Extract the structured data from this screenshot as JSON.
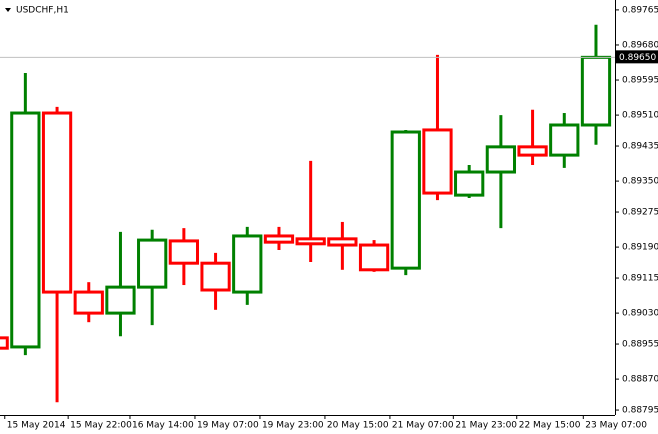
{
  "chart_data": {
    "type": "candlestick",
    "title": "USDCHF,H1",
    "up_color": "#008000",
    "down_color": "#ff0000",
    "price_line_color": "#c0c0c0",
    "ylim": [
      0.88783,
      0.89789
    ],
    "yticks": [
      0.89765,
      {
        "value": 0.8968,
        "label": "0.89680"
      },
      0.89595,
      {
        "value": 0.8951,
        "label": "0.89510"
      },
      0.89435,
      {
        "value": 0.8935,
        "label": "0.89350"
      },
      0.89275,
      {
        "value": 0.8919,
        "label": "0.89190"
      },
      0.89115,
      {
        "value": 0.8903,
        "label": "0.89030"
      },
      0.88955,
      {
        "value": 0.8887,
        "label": "0.88870"
      },
      0.88795
    ],
    "xlim": [
      0.2,
      19.6
    ],
    "xticks": [
      {
        "value": 0.35,
        "label": "15 May 2014"
      },
      {
        "value": 2.35,
        "label": "15 May 22:00"
      },
      {
        "value": 4.3,
        "label": "16 May 14:00"
      },
      {
        "value": 6.35,
        "label": "19 May 07:00"
      },
      {
        "value": 8.4,
        "label": "19 May 23:00"
      },
      {
        "value": 10.45,
        "label": "20 May 15:00"
      },
      {
        "value": 12.5,
        "label": "21 May 07:00"
      },
      {
        "value": 14.5,
        "label": "21 May 23:00"
      },
      {
        "value": 16.5,
        "label": "22 May 15:00"
      },
      {
        "value": 18.6,
        "label": "23 May 07:00"
      }
    ],
    "current_price": {
      "value": 0.8965,
      "label": "0.89650"
    },
    "x": [
      0,
      1,
      2,
      3,
      4,
      5,
      6,
      7,
      8,
      9,
      10,
      11,
      12,
      13,
      14,
      15,
      16,
      17,
      18,
      19
    ],
    "open": [
      0.8897,
      0.88948,
      0.89515,
      0.89081,
      0.8903,
      0.89093,
      0.89205,
      0.89151,
      0.89081,
      0.89217,
      0.8921,
      0.8921,
      0.89195,
      0.89139,
      0.89474,
      0.89316,
      0.89372,
      0.89433,
      0.89413,
      0.89486
    ],
    "high": [
      0.8897,
      0.89612,
      0.8953,
      0.89105,
      0.89227,
      0.89232,
      0.89236,
      0.89176,
      0.89239,
      0.89239,
      0.89399,
      0.89251,
      0.89207,
      0.89474,
      0.89656,
      0.89389,
      0.8951,
      0.89523,
      0.89515,
      0.89729
    ],
    "low": [
      0.88916,
      0.88928,
      0.88814,
      0.89008,
      0.88974,
      0.89001,
      0.89098,
      0.89038,
      0.8905,
      0.89183,
      0.89154,
      0.89135,
      0.8913,
      0.89122,
      0.89304,
      0.89309,
      0.89236,
      0.89389,
      0.89382,
      0.89438
    ],
    "close": [
      0.88945,
      0.89515,
      0.89081,
      0.8903,
      0.89093,
      0.89207,
      0.89151,
      0.89086,
      0.89217,
      0.89202,
      0.89198,
      0.89195,
      0.89135,
      0.89469,
      0.89321,
      0.89372,
      0.89433,
      0.89413,
      0.89486,
      0.8965
    ]
  }
}
